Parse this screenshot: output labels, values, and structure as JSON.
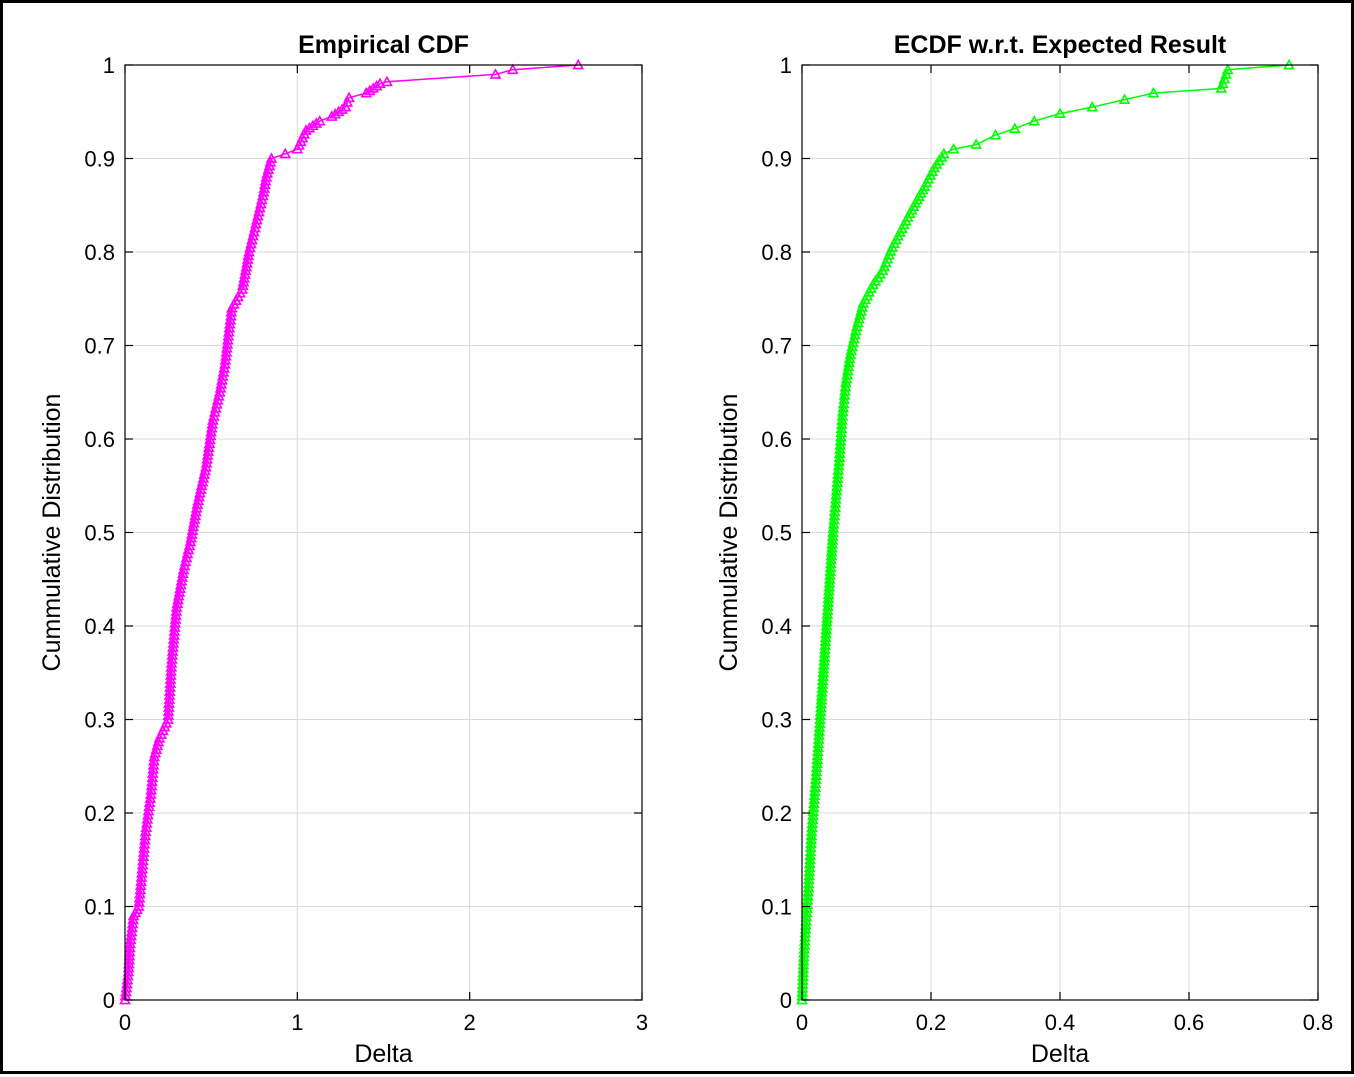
{
  "chart_data": [
    {
      "type": "line",
      "title": "Empirical CDF",
      "xlabel": "Delta",
      "ylabel": "Cummulative Distribution",
      "xlim": [
        0,
        3
      ],
      "ylim": [
        0,
        1
      ],
      "xticks": [
        0,
        1,
        2,
        3
      ],
      "yticks": [
        0,
        0.1,
        0.2,
        0.3,
        0.4,
        0.5,
        0.6,
        0.7,
        0.8,
        0.9,
        1
      ],
      "grid": true,
      "marker": "triangle",
      "color": "#ff00ff",
      "points": [
        [
          0.0,
          0.0
        ],
        [
          0.02,
          0.03
        ],
        [
          0.03,
          0.06
        ],
        [
          0.05,
          0.09
        ],
        [
          0.08,
          0.1
        ],
        [
          0.1,
          0.14
        ],
        [
          0.12,
          0.18
        ],
        [
          0.15,
          0.22
        ],
        [
          0.17,
          0.26
        ],
        [
          0.2,
          0.28
        ],
        [
          0.25,
          0.3
        ],
        [
          0.27,
          0.36
        ],
        [
          0.3,
          0.42
        ],
        [
          0.34,
          0.46
        ],
        [
          0.38,
          0.49
        ],
        [
          0.42,
          0.53
        ],
        [
          0.47,
          0.57
        ],
        [
          0.51,
          0.62
        ],
        [
          0.55,
          0.65
        ],
        [
          0.58,
          0.68
        ],
        [
          0.6,
          0.71
        ],
        [
          0.62,
          0.74
        ],
        [
          0.68,
          0.76
        ],
        [
          0.72,
          0.8
        ],
        [
          0.76,
          0.83
        ],
        [
          0.8,
          0.86
        ],
        [
          0.82,
          0.88
        ],
        [
          0.85,
          0.9
        ],
        [
          0.93,
          0.905
        ],
        [
          1.0,
          0.91
        ],
        [
          1.05,
          0.93
        ],
        [
          1.13,
          0.94
        ],
        [
          1.2,
          0.945
        ],
        [
          1.28,
          0.955
        ],
        [
          1.3,
          0.965
        ],
        [
          1.4,
          0.97
        ],
        [
          1.48,
          0.98
        ],
        [
          1.52,
          0.982
        ],
        [
          2.15,
          0.99
        ],
        [
          2.25,
          0.995
        ],
        [
          2.63,
          1.0
        ]
      ]
    },
    {
      "type": "line",
      "title": "ECDF w.r.t. Expected Result",
      "xlabel": "Delta",
      "ylabel": "Cummulative Distribution",
      "xlim": [
        0,
        0.8
      ],
      "ylim": [
        0,
        1
      ],
      "xticks": [
        0,
        0.2,
        0.4,
        0.6,
        0.8
      ],
      "yticks": [
        0,
        0.1,
        0.2,
        0.3,
        0.4,
        0.5,
        0.6,
        0.7,
        0.8,
        0.9,
        1
      ],
      "grid": true,
      "marker": "triangle",
      "color": "#00ff00",
      "points": [
        [
          0.0,
          0.0
        ],
        [
          0.003,
          0.05
        ],
        [
          0.006,
          0.08
        ],
        [
          0.01,
          0.12
        ],
        [
          0.015,
          0.18
        ],
        [
          0.022,
          0.24
        ],
        [
          0.028,
          0.3
        ],
        [
          0.033,
          0.35
        ],
        [
          0.038,
          0.4
        ],
        [
          0.043,
          0.45
        ],
        [
          0.048,
          0.5
        ],
        [
          0.053,
          0.54
        ],
        [
          0.058,
          0.58
        ],
        [
          0.062,
          0.62
        ],
        [
          0.068,
          0.66
        ],
        [
          0.075,
          0.69
        ],
        [
          0.085,
          0.72
        ],
        [
          0.095,
          0.745
        ],
        [
          0.11,
          0.765
        ],
        [
          0.125,
          0.78
        ],
        [
          0.14,
          0.805
        ],
        [
          0.155,
          0.825
        ],
        [
          0.17,
          0.845
        ],
        [
          0.19,
          0.87
        ],
        [
          0.205,
          0.89
        ],
        [
          0.22,
          0.905
        ],
        [
          0.235,
          0.91
        ],
        [
          0.27,
          0.915
        ],
        [
          0.3,
          0.925
        ],
        [
          0.33,
          0.932
        ],
        [
          0.36,
          0.94
        ],
        [
          0.4,
          0.948
        ],
        [
          0.45,
          0.955
        ],
        [
          0.5,
          0.963
        ],
        [
          0.545,
          0.97
        ],
        [
          0.65,
          0.975
        ],
        [
          0.655,
          0.985
        ],
        [
          0.66,
          0.995
        ],
        [
          0.755,
          1.0
        ]
      ]
    }
  ]
}
